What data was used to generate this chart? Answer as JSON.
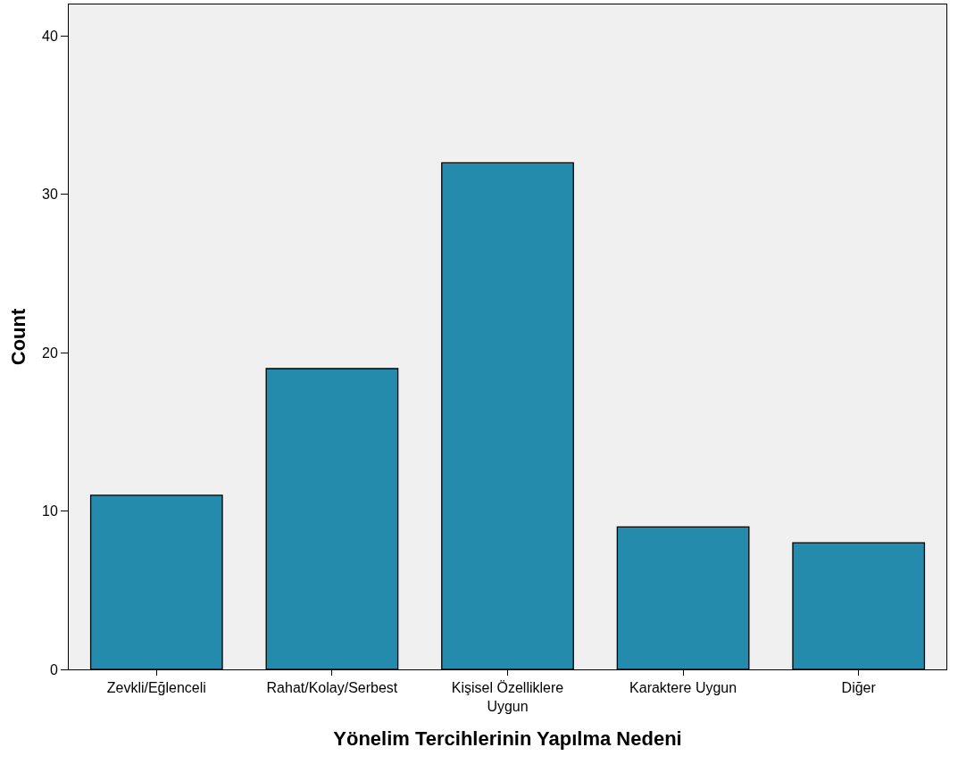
{
  "chart_data": {
    "type": "bar",
    "xlabel": "Yönelim Tercihlerinin Yapılma Nedeni",
    "ylabel": "Count",
    "categories": [
      "Zevkli/Eğlenceli",
      "Rahat/Kolay/Serbest",
      "Kişisel Özelliklere Uygun",
      "Karaktere Uygun",
      "Diğer"
    ],
    "values": [
      11,
      19,
      32,
      9,
      8
    ],
    "color": "#248bac",
    "ylim": [
      0,
      42
    ],
    "yticks": [
      0,
      10,
      20,
      30,
      40
    ],
    "grid": false,
    "legend": false
  }
}
